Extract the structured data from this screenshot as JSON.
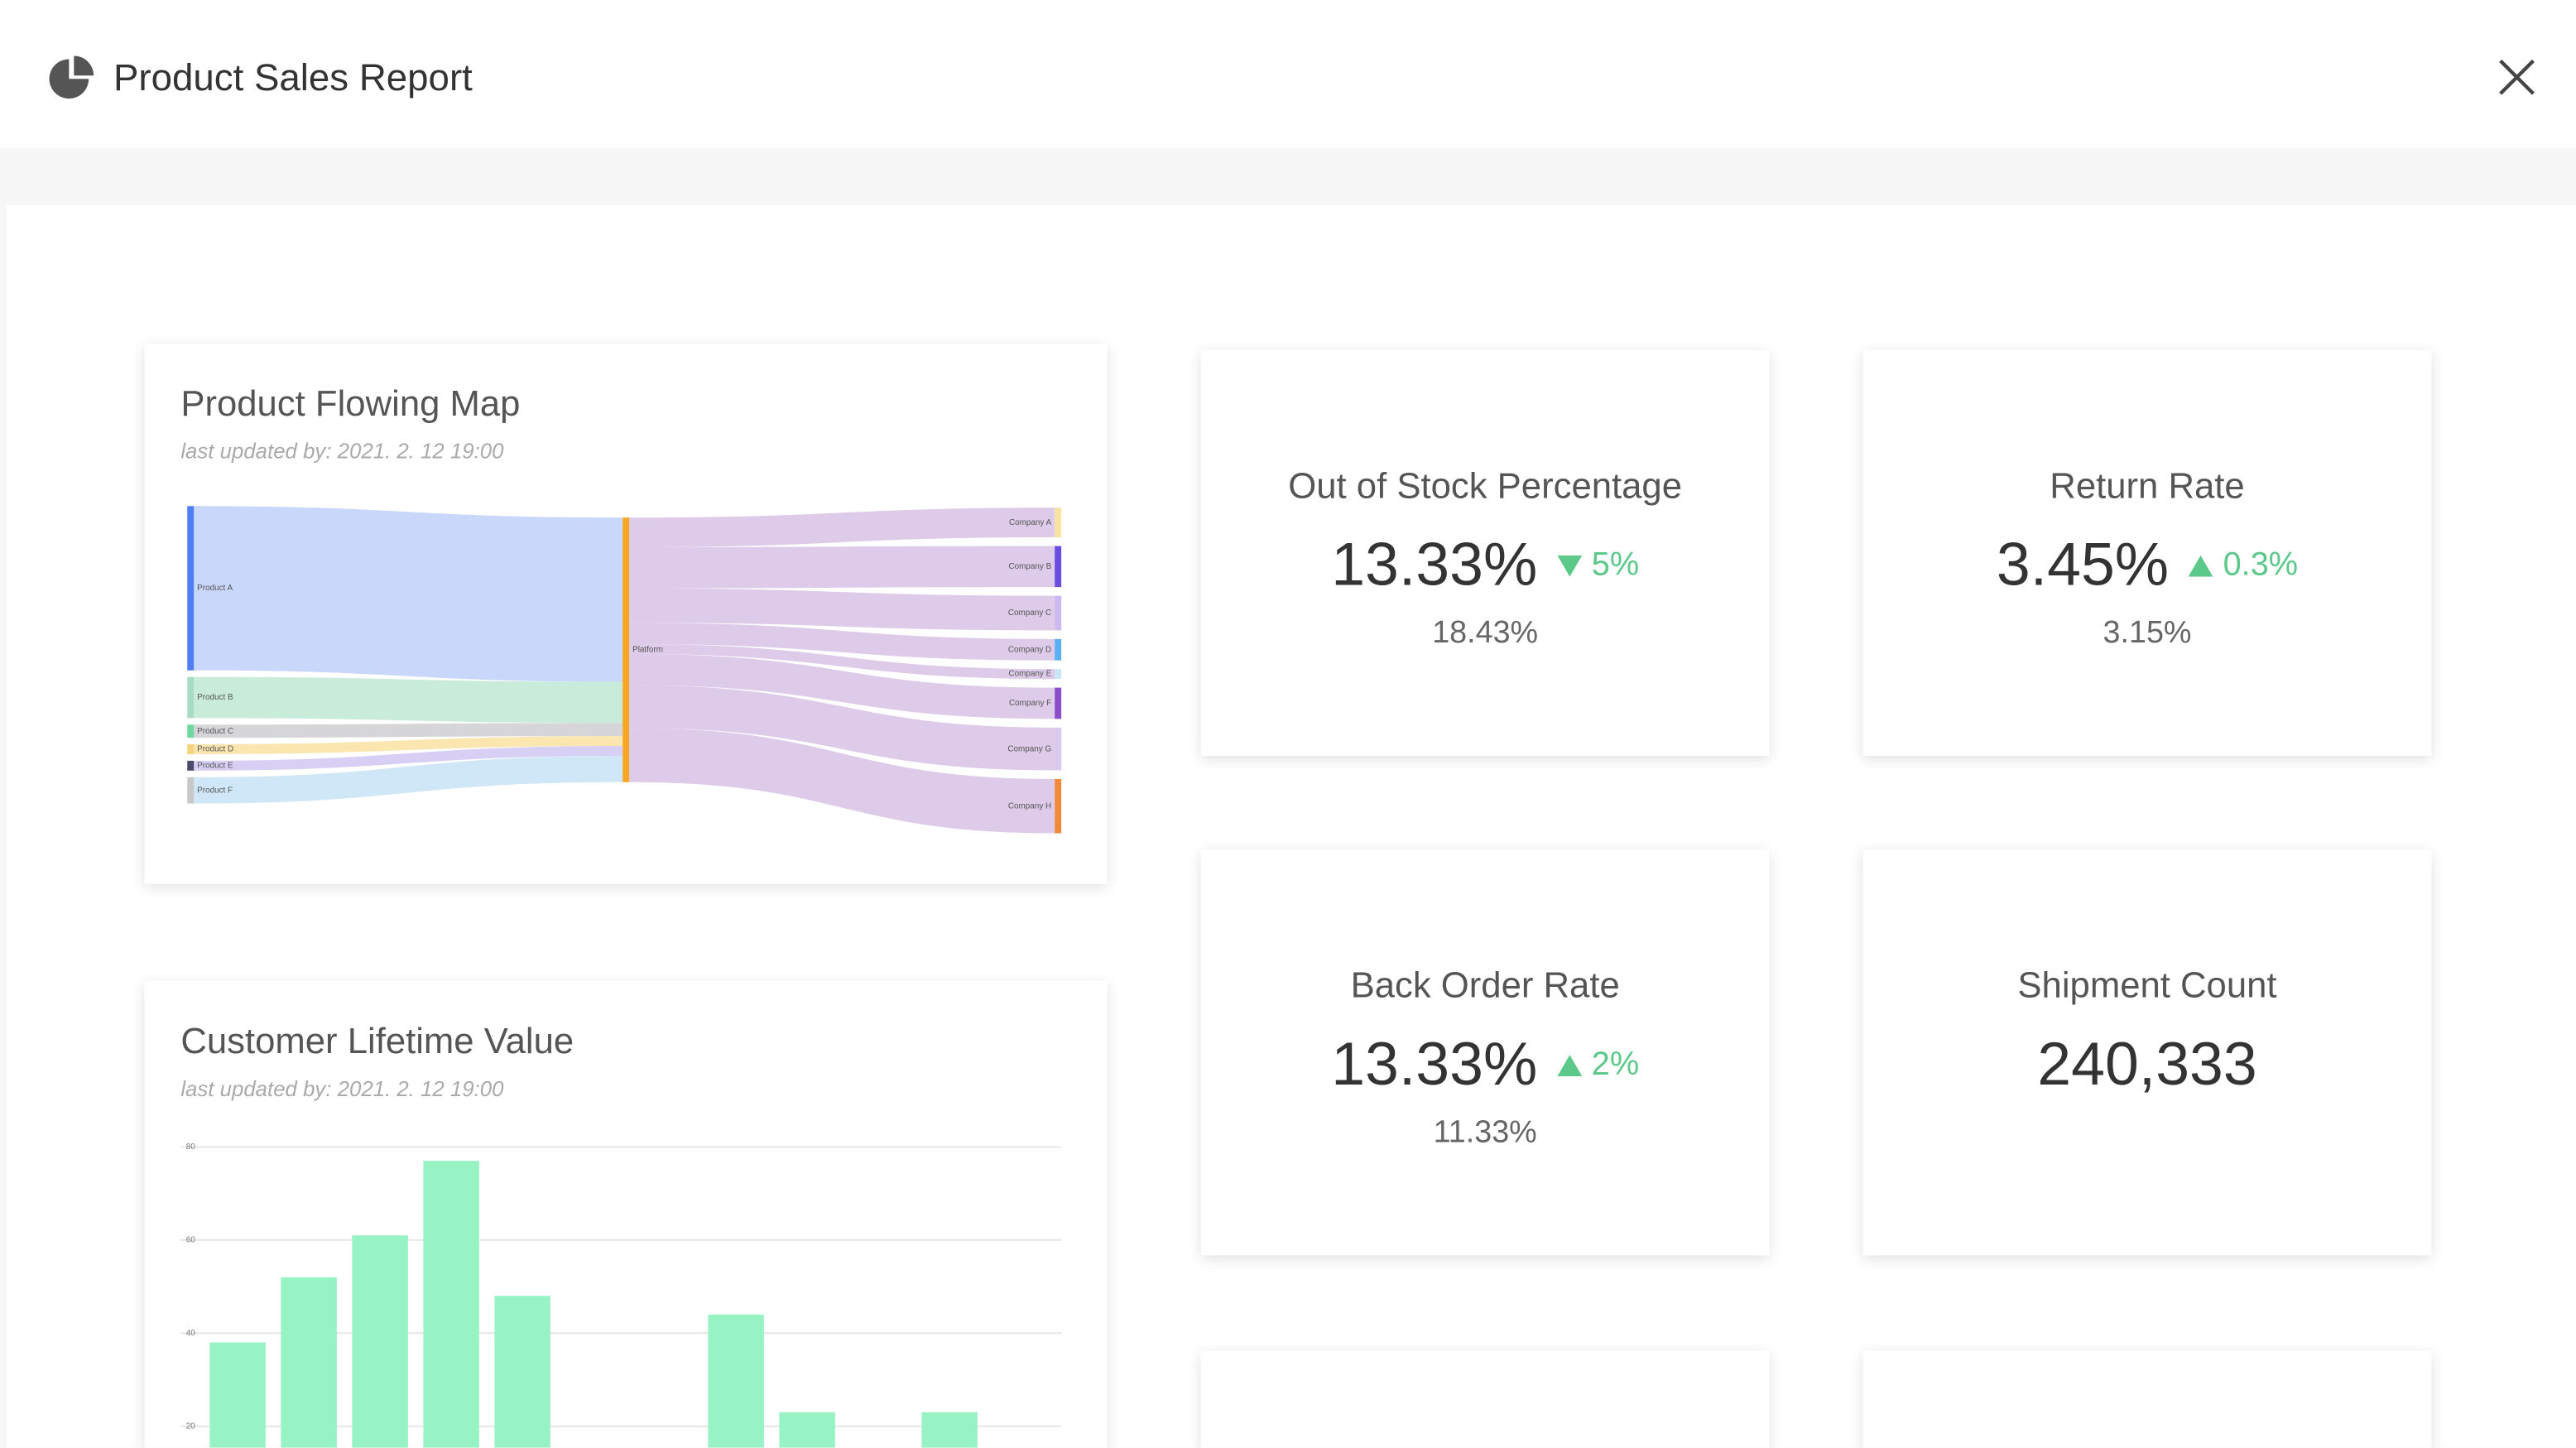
{
  "header": {
    "title": "Product Sales Report"
  },
  "chart_data": [
    {
      "type": "sankey",
      "title": "Product Flowing Map",
      "subtitle": "last updated by: 2021. 2. 12 19:00",
      "sources": [
        {
          "name": "Product A",
          "color": "#4f7df5",
          "link_color": "#c9d7fa",
          "value": 100
        },
        {
          "name": "Product B",
          "color": "#a9dcc4",
          "link_color": "#c8ecd9",
          "value": 25
        },
        {
          "name": "Product C",
          "color": "#6fd7a0",
          "link_color": "#d6d6d9",
          "value": 8
        },
        {
          "name": "Product D",
          "color": "#f5d37a",
          "link_color": "#fbe6b0",
          "value": 6
        },
        {
          "name": "Product E",
          "color": "#4a4a6a",
          "link_color": "#d8cff5",
          "value": 6
        },
        {
          "name": "Product F",
          "color": "#c8c8c8",
          "link_color": "#cfe7f6",
          "value": 16
        }
      ],
      "hub": {
        "name": "Platform",
        "color": "#f5a623"
      },
      "target_link_color": "#ddcbe9",
      "targets": [
        {
          "name": "Company A",
          "color": "#f9e3a0",
          "value": 18
        },
        {
          "name": "Company B",
          "color": "#6b4de0",
          "value": 25
        },
        {
          "name": "Company C",
          "color": "#cbb9f0",
          "value": 21
        },
        {
          "name": "Company D",
          "color": "#5ab0f0",
          "value": 13
        },
        {
          "name": "Company E",
          "color": "#c9e6f5",
          "value": 6
        },
        {
          "name": "Company F",
          "color": "#8a4fc8",
          "value": 19
        },
        {
          "name": "Company G",
          "color": "#d9c8ef",
          "value": 26
        },
        {
          "name": "Company H",
          "color": "#f08a3a",
          "value": 33
        }
      ]
    },
    {
      "type": "bar",
      "title": "Customer Lifetime Value",
      "subtitle": "last updated by: 2021. 2. 12 19:00",
      "categories": [
        null,
        null,
        null,
        null,
        null,
        null,
        null,
        null,
        null,
        null,
        null,
        null
      ],
      "values": [
        38,
        52,
        61,
        77,
        48,
        null,
        null,
        44,
        23,
        null,
        23,
        null
      ],
      "color": "#97f3c4",
      "ylim": [
        0,
        80
      ],
      "yticks": [
        20,
        40,
        60,
        80
      ],
      "grid": true
    }
  ],
  "kpis": [
    {
      "title": "Out of Stock Percentage",
      "value": "13.33%",
      "change": "5%",
      "direction": "down",
      "previous": "18.43%"
    },
    {
      "title": "Return Rate",
      "value": "3.45%",
      "change": "0.3%",
      "direction": "up",
      "previous": "3.15%"
    },
    {
      "title": "Back Order Rate",
      "value": "13.33%",
      "change": "2%",
      "direction": "up",
      "previous": "11.33%"
    },
    {
      "title": "Shipment Count",
      "value": "240,333"
    }
  ]
}
